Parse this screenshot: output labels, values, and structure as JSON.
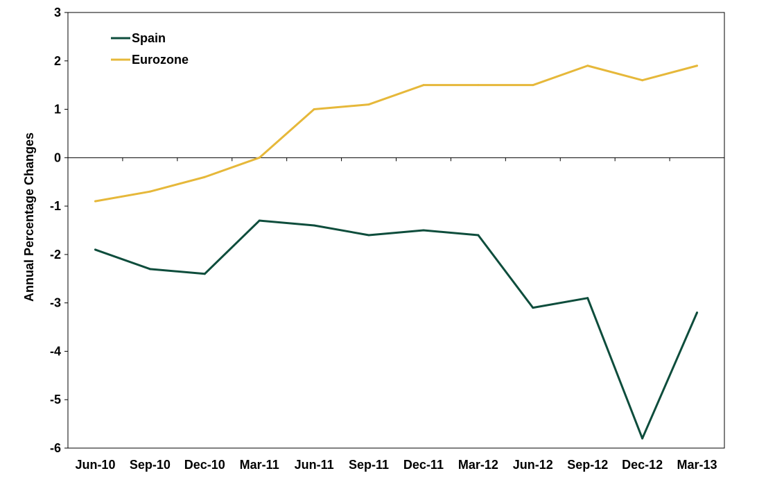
{
  "chart_data": {
    "type": "line",
    "title": "",
    "xlabel": "",
    "ylabel": "Annual Percentage Changes",
    "categories": [
      "Jun-10",
      "Sep-10",
      "Dec-10",
      "Mar-11",
      "Jun-11",
      "Sep-11",
      "Dec-11",
      "Mar-12",
      "Jun-12",
      "Sep-12",
      "Dec-12",
      "Mar-13"
    ],
    "ylim": [
      -6,
      3
    ],
    "yticks": [
      3,
      2,
      1,
      0,
      -1,
      -2,
      -3,
      -4,
      -5,
      -6
    ],
    "grid": false,
    "legend_position": "top-left",
    "series": [
      {
        "name": "Spain",
        "color": "#0e4d3c",
        "values": [
          -1.9,
          -2.3,
          -2.4,
          -1.3,
          -1.4,
          -1.6,
          -1.5,
          -1.6,
          -3.1,
          -2.9,
          -5.8,
          -3.2
        ]
      },
      {
        "name": "Eurozone",
        "color": "#e6b83a",
        "values": [
          -0.9,
          -0.7,
          -0.4,
          0.0,
          1.0,
          1.1,
          1.5,
          1.5,
          1.5,
          1.9,
          1.6,
          1.9
        ]
      }
    ]
  }
}
